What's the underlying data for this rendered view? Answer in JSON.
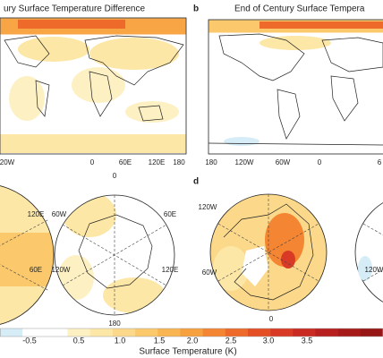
{
  "panels": [
    {
      "title": "ury Surface Temperature Difference",
      "lon_labels": [
        "20W",
        "0",
        "60E",
        "120E",
        "180"
      ]
    },
    {
      "letter": "b",
      "title": "End of Century Surface Tempera",
      "lon_labels": [
        "180",
        "120W",
        "60W",
        "0",
        "6"
      ]
    }
  ],
  "polar": [
    {
      "labels": [
        "120E",
        "60E"
      ]
    },
    {
      "labels": [
        "0",
        "60W",
        "120W",
        "60E",
        "120E",
        "180"
      ]
    },
    {
      "letter": "d",
      "labels": [
        "120W",
        "60W",
        "0"
      ]
    },
    {
      "labels": [
        "120W"
      ]
    }
  ],
  "colorbar": {
    "label": "Surface Temperature (K)",
    "ticks": [
      "-0.5",
      "0.5",
      "1.0",
      "1.5",
      "2.0",
      "2.5",
      "3.0",
      "3.5"
    ],
    "colors": [
      "#d6ecf7",
      "#ffffff",
      "#ffffff",
      "#fdf1c4",
      "#fde7a6",
      "#fcd98a",
      "#fbc96c",
      "#f9b552",
      "#f7a03e",
      "#f48532",
      "#ee6a2a",
      "#e54f26",
      "#d93a25",
      "#c92a22",
      "#b81f1f",
      "#a71a1a",
      "#961515"
    ]
  }
}
